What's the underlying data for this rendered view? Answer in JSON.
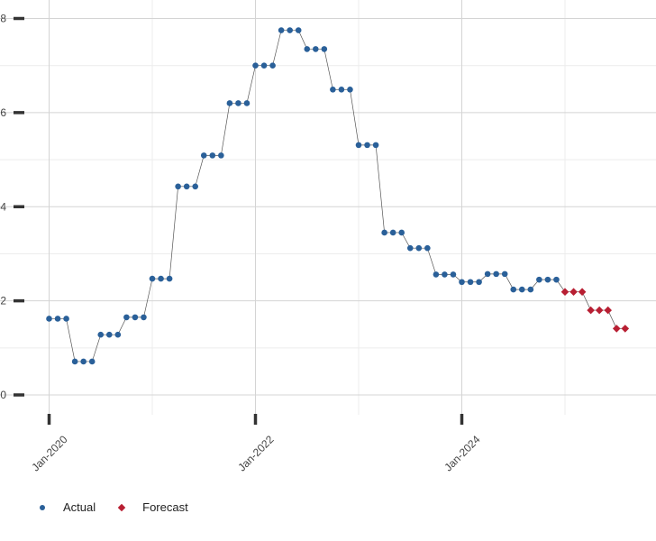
{
  "chart_data": {
    "type": "line",
    "title": "",
    "xlabel": "",
    "ylabel": "",
    "x_ticks": [
      "Jan-2020",
      "Jan-2022",
      "Jan-2024"
    ],
    "y_ticks": [
      "0",
      "2",
      "4",
      "6",
      "8"
    ],
    "ylim": [
      0,
      8
    ],
    "grid": true,
    "legend_position": "bottom-left",
    "series": [
      {
        "name": "Actual",
        "color": "#2a6099",
        "marker": "circle",
        "x": [
          "2020-01",
          "2020-02",
          "2020-03",
          "2020-04",
          "2020-05",
          "2020-06",
          "2020-07",
          "2020-08",
          "2020-09",
          "2020-10",
          "2020-11",
          "2020-12",
          "2021-01",
          "2021-02",
          "2021-03",
          "2021-04",
          "2021-05",
          "2021-06",
          "2021-07",
          "2021-08",
          "2021-09",
          "2021-10",
          "2021-11",
          "2021-12",
          "2022-01",
          "2022-02",
          "2022-03",
          "2022-04",
          "2022-05",
          "2022-06",
          "2022-07",
          "2022-08",
          "2022-09",
          "2022-10",
          "2022-11",
          "2022-12",
          "2023-01",
          "2023-02",
          "2023-03",
          "2023-04",
          "2023-05",
          "2023-06",
          "2023-07",
          "2023-08",
          "2023-09",
          "2023-10",
          "2023-11",
          "2023-12",
          "2024-01",
          "2024-02",
          "2024-03",
          "2024-04",
          "2024-05",
          "2024-06",
          "2024-07",
          "2024-08",
          "2024-09",
          "2024-10",
          "2024-11",
          "2024-12"
        ],
        "values": [
          1.62,
          1.62,
          1.62,
          0.71,
          0.71,
          0.71,
          1.28,
          1.28,
          1.28,
          1.65,
          1.65,
          1.65,
          2.47,
          2.47,
          2.47,
          4.43,
          4.43,
          4.43,
          5.09,
          5.09,
          5.09,
          6.2,
          6.2,
          6.2,
          7.0,
          7.0,
          7.0,
          7.75,
          7.75,
          7.75,
          7.35,
          7.35,
          7.35,
          6.49,
          6.49,
          6.49,
          5.31,
          5.31,
          5.31,
          3.45,
          3.45,
          3.45,
          3.12,
          3.12,
          3.12,
          2.56,
          2.56,
          2.56,
          2.4,
          2.4,
          2.4,
          2.57,
          2.57,
          2.57,
          2.24,
          2.24,
          2.24,
          2.45,
          2.45,
          2.45
        ]
      },
      {
        "name": "Forecast",
        "color": "#b81f33",
        "marker": "diamond",
        "x": [
          "2025-01",
          "2025-02",
          "2025-03",
          "2025-04",
          "2025-05",
          "2025-06",
          "2025-07",
          "2025-08"
        ],
        "values": [
          2.19,
          2.19,
          2.19,
          1.8,
          1.8,
          1.8,
          1.41,
          1.41
        ]
      }
    ]
  }
}
